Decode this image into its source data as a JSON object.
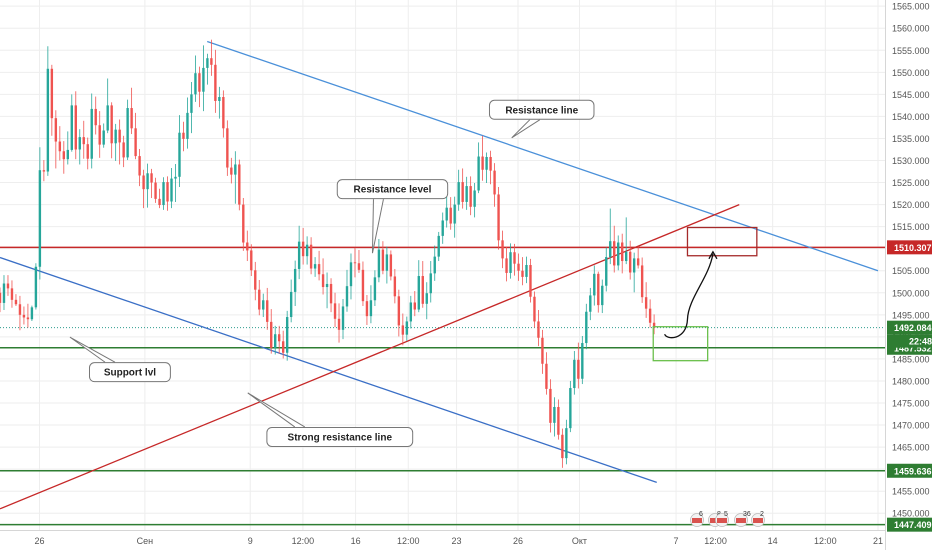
{
  "chart_data": {
    "type": "candlestick",
    "title": "",
    "xlabel": "",
    "ylabel": "",
    "ylim": [
      1446.2,
      1566.4
    ],
    "grid": true,
    "colors": {
      "up": "#26a69a",
      "down": "#ef5350",
      "blue_line": "#4a90d9",
      "channel_line": "#3a6fc6",
      "red_line": "#c62828",
      "support_green": "#2e7d32",
      "box_green": "#6abf4b",
      "box_red": "#a52a2a",
      "price_green_label": "#2e7d32",
      "price_red_label": "#c62828"
    },
    "y_ticks": [
      "1565.000",
      "1560.000",
      "1555.000",
      "1550.000",
      "1545.000",
      "1540.000",
      "1535.000",
      "1530.000",
      "1525.000",
      "1520.000",
      "1515.000",
      "1510.000",
      "1505.000",
      "1500.000",
      "1495.000",
      "1490.000",
      "1485.000",
      "1480.000",
      "1475.000",
      "1470.000",
      "1465.000",
      "1460.000",
      "1455.000",
      "1450.000"
    ],
    "x_ticks": [
      {
        "label": "26",
        "t": 0.045
      },
      {
        "label": "Сен",
        "t": 0.165
      },
      {
        "label": "9",
        "t": 0.285
      },
      {
        "label": "12:00",
        "t": 0.345
      },
      {
        "label": "16",
        "t": 0.405
      },
      {
        "label": "12:00",
        "t": 0.465
      },
      {
        "label": "23",
        "t": 0.52
      },
      {
        "label": "26",
        "t": 0.59
      },
      {
        "label": "Окт",
        "t": 0.66
      },
      {
        "label": "7",
        "t": 0.77
      },
      {
        "label": "12:00",
        "t": 0.815
      },
      {
        "label": "14",
        "t": 0.88
      },
      {
        "label": "12:00",
        "t": 0.94
      },
      {
        "label": "21",
        "t": 1.0
      }
    ],
    "price_labels": [
      {
        "value": 1510.307,
        "text": "1510.307",
        "color": "#c62828"
      },
      {
        "value": 1492.084,
        "text": "1492.084",
        "color": "#2e7d32"
      },
      {
        "value": 1487.532,
        "text": "1487.532",
        "color": "#2e7d32"
      },
      {
        "value": 1459.636,
        "text": "1459.636",
        "color": "#2e7d32"
      },
      {
        "value": 1447.409,
        "text": "1447.409",
        "color": "#2e7d32"
      }
    ],
    "countdown_label": {
      "text": "22:48",
      "color": "#2e7d32"
    },
    "horizontal_levels": [
      {
        "value": 1510.307,
        "color": "#c62828"
      },
      {
        "value": 1487.532,
        "color": "#2e7d32"
      },
      {
        "value": 1459.636,
        "color": "#2e7d32"
      },
      {
        "value": 1447.409,
        "color": "#2e7d32"
      }
    ],
    "trend_lines": [
      {
        "name": "resistance",
        "from": {
          "t": 0.236,
          "price": 1557.0
        },
        "to": {
          "t": 1.0,
          "price": 1505.0
        },
        "color": "#4a90d9"
      },
      {
        "name": "support",
        "from": {
          "t": 0.0,
          "price": 1508.0
        },
        "to": {
          "t": 0.748,
          "price": 1457.0
        },
        "color": "#3a6fc6"
      },
      {
        "name": "strong-resistance",
        "from": {
          "t": 0.0,
          "price": 1451.0
        },
        "to": {
          "t": 0.842,
          "price": 1520.0
        },
        "color": "#c62828"
      }
    ],
    "annotations": [
      {
        "text": "Resistance line",
        "price": 1541.5,
        "t": 0.617
      },
      {
        "text": "Resistance level",
        "price": 1523.5,
        "t": 0.447
      },
      {
        "text": "Support lvl",
        "price": 1482.0,
        "t": 0.148
      },
      {
        "text": "Strong resistance line",
        "price": 1467.3,
        "t": 0.387
      }
    ],
    "candles": [
      [
        1500.0,
        1501.2,
        1495.6,
        1497.7
      ],
      [
        1497.7,
        1504.0,
        1496.1,
        1502.1
      ],
      [
        1502.1,
        1504.0,
        1499.3,
        1501.0
      ],
      [
        1501.0,
        1502.8,
        1496.6,
        1498.4
      ],
      [
        1498.4,
        1499.7,
        1497.0,
        1497.4
      ],
      [
        1497.4,
        1499.3,
        1491.5,
        1495.0
      ],
      [
        1495.0,
        1496.9,
        1492.8,
        1494.4
      ],
      [
        1494.4,
        1497.5,
        1492.1,
        1494.0
      ],
      [
        1494.0,
        1497.1,
        1493.6,
        1496.7
      ],
      [
        1496.7,
        1506.7,
        1496.2,
        1505.9
      ],
      [
        1505.9,
        1533.0,
        1503.0,
        1527.8
      ],
      [
        1527.8,
        1530.1,
        1525.3,
        1527.5
      ],
      [
        1527.5,
        1555.9,
        1526.5,
        1550.8
      ],
      [
        1550.8,
        1551.7,
        1535.6,
        1539.6
      ],
      [
        1539.6,
        1541.4,
        1528.2,
        1534.3
      ],
      [
        1534.3,
        1537.8,
        1530.0,
        1532.1
      ],
      [
        1532.1,
        1534.4,
        1527.0,
        1530.3
      ],
      [
        1530.3,
        1536.6,
        1529.1,
        1532.4
      ],
      [
        1532.4,
        1545.0,
        1532.0,
        1542.5
      ],
      [
        1542.5,
        1545.7,
        1530.3,
        1532.5
      ],
      [
        1532.5,
        1537.1,
        1529.1,
        1535.3
      ],
      [
        1535.3,
        1539.0,
        1530.4,
        1533.7
      ],
      [
        1533.7,
        1535.2,
        1528.0,
        1530.4
      ],
      [
        1530.4,
        1545.2,
        1528.2,
        1541.7
      ],
      [
        1541.7,
        1544.5,
        1535.9,
        1538.0
      ],
      [
        1538.0,
        1541.2,
        1530.6,
        1533.6
      ],
      [
        1533.6,
        1538.4,
        1532.9,
        1536.8
      ],
      [
        1536.8,
        1548.6,
        1536.2,
        1542.5
      ],
      [
        1542.5,
        1543.2,
        1530.5,
        1533.9
      ],
      [
        1533.9,
        1538.3,
        1529.9,
        1537.0
      ],
      [
        1537.0,
        1539.3,
        1529.1,
        1534.1
      ],
      [
        1534.1,
        1535.6,
        1528.5,
        1530.7
      ],
      [
        1530.7,
        1543.8,
        1530.1,
        1541.9
      ],
      [
        1541.9,
        1546.5,
        1536.0,
        1537.3
      ],
      [
        1537.3,
        1540.8,
        1530.3,
        1531.0
      ],
      [
        1531.0,
        1532.6,
        1524.2,
        1526.6
      ],
      [
        1526.6,
        1527.9,
        1519.2,
        1523.5
      ],
      [
        1523.5,
        1529.3,
        1519.3,
        1527.1
      ],
      [
        1527.1,
        1528.1,
        1521.5,
        1525.0
      ],
      [
        1525.0,
        1526.1,
        1520.4,
        1521.3
      ],
      [
        1521.3,
        1523.6,
        1519.2,
        1519.9
      ],
      [
        1519.9,
        1526.2,
        1518.8,
        1525.1
      ],
      [
        1525.1,
        1526.4,
        1518.6,
        1520.7
      ],
      [
        1520.7,
        1528.3,
        1519.2,
        1525.9
      ],
      [
        1525.9,
        1529.2,
        1520.6,
        1526.3
      ],
      [
        1526.3,
        1540.3,
        1524.0,
        1536.3
      ],
      [
        1536.3,
        1538.8,
        1532.1,
        1534.9
      ],
      [
        1534.9,
        1544.3,
        1532.7,
        1540.8
      ],
      [
        1540.8,
        1547.8,
        1536.2,
        1545.0
      ],
      [
        1545.0,
        1553.8,
        1543.3,
        1549.8
      ],
      [
        1549.8,
        1551.3,
        1542.1,
        1545.6
      ],
      [
        1545.6,
        1556.1,
        1541.2,
        1551.0
      ],
      [
        1551.0,
        1554.2,
        1547.2,
        1553.2
      ],
      [
        1553.2,
        1557.4,
        1549.2,
        1551.7
      ],
      [
        1551.7,
        1555.1,
        1540.8,
        1543.5
      ],
      [
        1543.5,
        1546.7,
        1539.5,
        1544.4
      ],
      [
        1544.4,
        1545.9,
        1535.2,
        1537.3
      ],
      [
        1537.3,
        1539.1,
        1526.5,
        1528.4
      ],
      [
        1528.4,
        1530.6,
        1524.8,
        1526.8
      ],
      [
        1526.8,
        1532.1,
        1520.2,
        1529.1
      ],
      [
        1529.1,
        1530.2,
        1518.7,
        1520.0
      ],
      [
        1520.0,
        1521.5,
        1509.5,
        1511.4
      ],
      [
        1511.4,
        1514.1,
        1507.2,
        1509.6
      ],
      [
        1509.6,
        1511.0,
        1503.8,
        1505.1
      ],
      [
        1505.1,
        1507.0,
        1498.3,
        1500.7
      ],
      [
        1500.7,
        1502.9,
        1494.9,
        1496.2
      ],
      [
        1496.2,
        1499.8,
        1494.5,
        1498.3
      ],
      [
        1498.3,
        1501.1,
        1491.6,
        1493.4
      ],
      [
        1493.4,
        1496.3,
        1486.2,
        1487.5
      ],
      [
        1487.5,
        1492.5,
        1486.0,
        1490.6
      ],
      [
        1490.6,
        1492.5,
        1486.2,
        1489.0
      ],
      [
        1489.0,
        1491.4,
        1485.1,
        1486.4
      ],
      [
        1486.4,
        1495.9,
        1484.6,
        1494.5
      ],
      [
        1494.5,
        1503.0,
        1493.3,
        1500.2
      ],
      [
        1500.2,
        1507.3,
        1497.0,
        1505.4
      ],
      [
        1505.4,
        1515.2,
        1503.1,
        1511.6
      ],
      [
        1511.6,
        1514.7,
        1506.4,
        1508.3
      ],
      [
        1508.3,
        1512.8,
        1506.4,
        1510.9
      ],
      [
        1510.9,
        1512.6,
        1504.2,
        1505.5
      ],
      [
        1505.5,
        1508.1,
        1503.6,
        1506.5
      ],
      [
        1506.5,
        1509.5,
        1502.8,
        1504.2
      ],
      [
        1504.2,
        1507.8,
        1499.6,
        1501.3
      ],
      [
        1501.3,
        1504.6,
        1496.5,
        1502.0
      ],
      [
        1502.0,
        1503.3,
        1495.6,
        1497.6
      ],
      [
        1497.6,
        1500.0,
        1492.2,
        1494.1
      ],
      [
        1494.1,
        1497.6,
        1488.7,
        1491.6
      ],
      [
        1491.6,
        1498.6,
        1489.5,
        1496.9
      ],
      [
        1496.9,
        1505.2,
        1495.7,
        1501.5
      ],
      [
        1501.5,
        1508.9,
        1498.5,
        1506.9
      ],
      [
        1506.9,
        1510.2,
        1503.5,
        1506.7
      ],
      [
        1506.7,
        1509.7,
        1504.5,
        1505.2
      ],
      [
        1505.2,
        1507.1,
        1497.0,
        1498.1
      ],
      [
        1498.1,
        1499.5,
        1492.7,
        1494.7
      ],
      [
        1494.7,
        1501.7,
        1493.1,
        1498.3
      ],
      [
        1498.3,
        1505.1,
        1497.0,
        1503.5
      ],
      [
        1503.5,
        1512.2,
        1502.4,
        1509.8
      ],
      [
        1509.8,
        1511.7,
        1504.2,
        1505.0
      ],
      [
        1505.0,
        1510.5,
        1502.1,
        1508.7
      ],
      [
        1508.7,
        1509.6,
        1502.8,
        1503.7
      ],
      [
        1503.7,
        1505.4,
        1497.6,
        1499.2
      ],
      [
        1499.2,
        1500.7,
        1490.1,
        1492.6
      ],
      [
        1492.6,
        1495.3,
        1488.1,
        1490.5
      ],
      [
        1490.5,
        1494.6,
        1489.1,
        1493.5
      ],
      [
        1493.5,
        1499.3,
        1491.9,
        1497.8
      ],
      [
        1497.8,
        1500.4,
        1494.7,
        1496.2
      ],
      [
        1496.2,
        1507.4,
        1495.6,
        1503.8
      ],
      [
        1503.8,
        1507.2,
        1496.6,
        1497.5
      ],
      [
        1497.5,
        1502.4,
        1494.0,
        1499.9
      ],
      [
        1499.9,
        1507.2,
        1497.8,
        1504.4
      ],
      [
        1504.4,
        1510.7,
        1502.7,
        1508.2
      ],
      [
        1508.2,
        1513.8,
        1507.2,
        1512.9
      ],
      [
        1512.9,
        1518.2,
        1511.1,
        1516.4
      ],
      [
        1516.4,
        1521.9,
        1514.8,
        1519.3
      ],
      [
        1519.3,
        1521.7,
        1514.3,
        1515.7
      ],
      [
        1515.7,
        1521.8,
        1512.5,
        1520.0
      ],
      [
        1520.0,
        1527.9,
        1518.6,
        1525.1
      ],
      [
        1525.1,
        1528.2,
        1519.1,
        1520.6
      ],
      [
        1520.6,
        1526.3,
        1518.8,
        1524.2
      ],
      [
        1524.2,
        1526.4,
        1517.6,
        1519.5
      ],
      [
        1519.5,
        1524.9,
        1517.1,
        1523.2
      ],
      [
        1523.2,
        1534.1,
        1522.6,
        1530.9
      ],
      [
        1530.9,
        1535.6,
        1525.4,
        1527.9
      ],
      [
        1527.9,
        1531.8,
        1524.9,
        1530.8
      ],
      [
        1530.8,
        1532.2,
        1524.6,
        1527.7
      ],
      [
        1527.7,
        1529.4,
        1519.5,
        1522.3
      ],
      [
        1522.3,
        1524.0,
        1509.8,
        1511.9
      ],
      [
        1511.9,
        1514.1,
        1505.6,
        1507.8
      ],
      [
        1507.8,
        1510.4,
        1502.6,
        1504.5
      ],
      [
        1504.5,
        1511.2,
        1503.2,
        1509.2
      ],
      [
        1509.2,
        1511.1,
        1503.9,
        1506.6
      ],
      [
        1506.6,
        1508.9,
        1502.7,
        1505.0
      ],
      [
        1505.0,
        1508.1,
        1501.7,
        1503.6
      ],
      [
        1503.6,
        1508.2,
        1502.2,
        1506.3
      ],
      [
        1506.3,
        1507.7,
        1497.8,
        1499.1
      ],
      [
        1499.1,
        1500.3,
        1492.1,
        1493.5
      ],
      [
        1493.5,
        1496.1,
        1487.9,
        1489.8
      ],
      [
        1489.8,
        1491.6,
        1481.6,
        1483.9
      ],
      [
        1483.9,
        1486.5,
        1476.9,
        1478.2
      ],
      [
        1478.2,
        1480.4,
        1468.3,
        1470.5
      ],
      [
        1470.5,
        1476.3,
        1467.4,
        1474.1
      ],
      [
        1474.1,
        1475.8,
        1466.7,
        1467.8
      ],
      [
        1467.8,
        1469.2,
        1460.3,
        1462.5
      ],
      [
        1462.5,
        1471.2,
        1461.1,
        1469.3
      ],
      [
        1469.3,
        1480.0,
        1468.4,
        1478.4
      ],
      [
        1478.4,
        1486.8,
        1476.9,
        1484.8
      ],
      [
        1484.8,
        1488.7,
        1478.3,
        1480.5
      ],
      [
        1480.5,
        1490.2,
        1479.3,
        1488.6
      ],
      [
        1488.6,
        1497.5,
        1487.2,
        1495.7
      ],
      [
        1495.7,
        1501.1,
        1493.8,
        1499.4
      ],
      [
        1499.4,
        1506.2,
        1497.1,
        1504.3
      ],
      [
        1504.3,
        1504.8,
        1495.5,
        1497.2
      ],
      [
        1497.2,
        1503.0,
        1495.4,
        1501.6
      ],
      [
        1501.6,
        1510.3,
        1500.3,
        1508.1
      ],
      [
        1508.1,
        1519.1,
        1506.5,
        1511.7
      ],
      [
        1511.7,
        1515.2,
        1504.6,
        1506.2
      ],
      [
        1506.2,
        1513.0,
        1505.1,
        1511.4
      ],
      [
        1511.4,
        1513.4,
        1504.4,
        1507.2
      ],
      [
        1507.2,
        1517.1,
        1506.5,
        1509.3
      ],
      [
        1509.3,
        1511.8,
        1503.0,
        1504.6
      ],
      [
        1504.6,
        1509.1,
        1500.1,
        1507.8
      ],
      [
        1507.8,
        1510.5,
        1505.5,
        1506.2
      ],
      [
        1506.2,
        1508.0,
        1497.7,
        1499.0
      ],
      [
        1499.0,
        1502.4,
        1494.3,
        1496.4
      ],
      [
        1496.4,
        1498.5,
        1492.1,
        1493.2
      ],
      [
        1493.2,
        1495.1,
        1490.6,
        1492.1
      ]
    ],
    "forecast_boxes": [
      {
        "name": "red-target-box",
        "t0": 0.783,
        "t1": 0.862,
        "p_top": 1514.8,
        "p_bot": 1508.4,
        "color": "#a52a2a"
      },
      {
        "name": "green-entry-box",
        "t0": 0.744,
        "t1": 0.806,
        "p_top": 1492.3,
        "p_bot": 1484.6,
        "color": "#6abf4b"
      }
    ],
    "projection": {
      "from": {
        "t": 0.757,
        "price": 1489.7
      },
      "mid": {
        "t": 0.783,
        "price": 1494.0
      },
      "to": {
        "t": 0.812,
        "price": 1509.3
      }
    }
  },
  "indicator_icons": [
    {
      "name": "event-flag-1",
      "count": "6"
    },
    {
      "name": "event-flag-2",
      "count": "8"
    },
    {
      "name": "event-flag-3",
      "count": "5"
    },
    {
      "name": "event-flag-4",
      "count": "36"
    },
    {
      "name": "event-flag-5",
      "count": "2"
    }
  ]
}
